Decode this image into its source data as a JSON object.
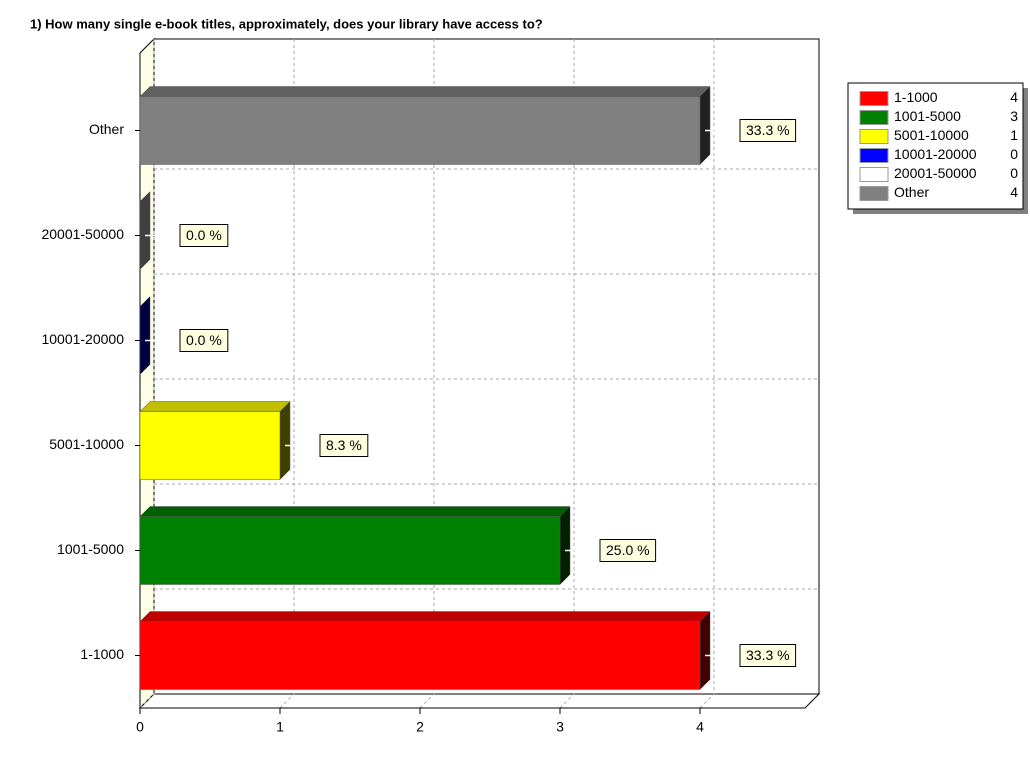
{
  "chart_data": {
    "type": "bar",
    "orientation": "horizontal",
    "title": "1) How many single e-book titles, approximately, does your library have access to?",
    "categories": [
      "1-1000",
      "1001-5000",
      "5001-10000",
      "10001-20000",
      "20001-50000",
      "Other"
    ],
    "values": [
      4,
      3,
      1,
      0,
      0,
      4
    ],
    "percent": [
      33.3,
      25.0,
      8.3,
      0.0,
      0.0,
      33.3
    ],
    "percent_labels": [
      "33.3 %",
      "25.0 %",
      "8.3 %",
      "0.0 %",
      "0.0 %",
      "33.3 %"
    ],
    "colors": [
      "#ff0000",
      "#008000",
      "#ffff00",
      "#0000ff",
      "#ffffff",
      "#808080"
    ],
    "xlim": [
      0,
      4.75
    ],
    "xticks": [
      0,
      1,
      2,
      3,
      4
    ],
    "grid": true,
    "legend": "top-right"
  }
}
